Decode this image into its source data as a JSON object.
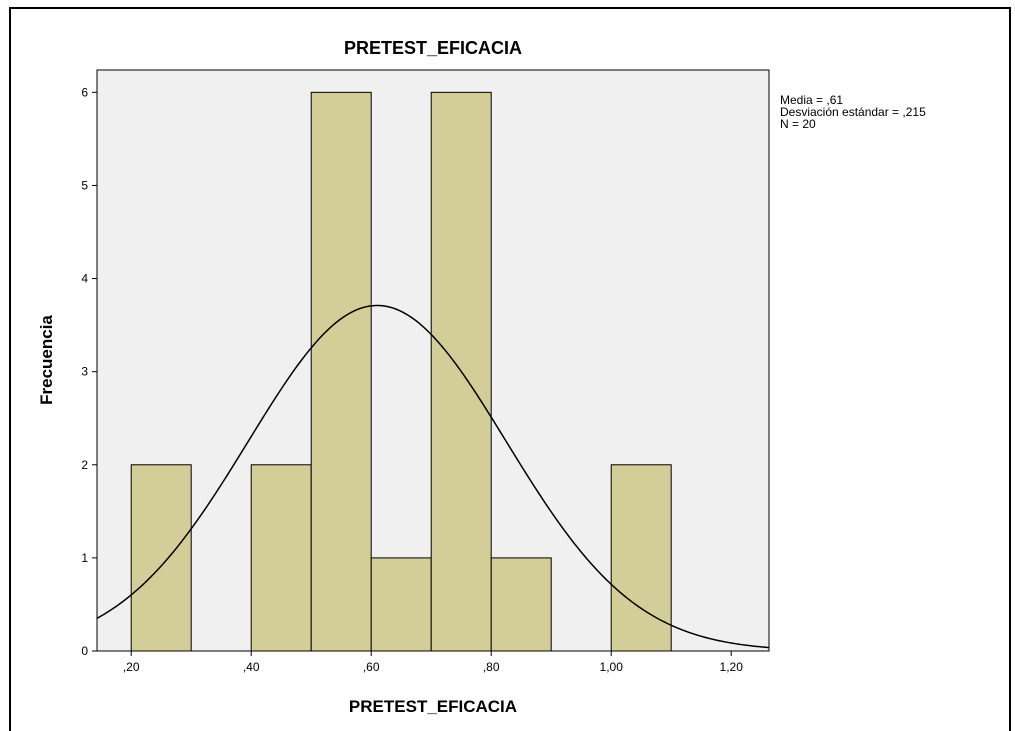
{
  "chart_data": {
    "type": "histogram",
    "title": "PRETEST_EFICACIA",
    "x_label": "PRETEST_EFICACIA",
    "y_label": "Frecuencia",
    "bins": [
      0.2,
      0.3,
      0.4,
      0.5,
      0.6,
      0.7,
      0.8,
      0.9,
      1.0,
      1.1
    ],
    "counts": [
      2,
      0,
      2,
      6,
      1,
      6,
      1,
      0,
      2
    ],
    "color": "#d3ce97",
    "plot_background": "#f0f0f0",
    "xlim": [
      0.143,
      1.263
    ],
    "ylim": [
      0,
      6.24
    ],
    "xticks": [
      {
        "value": 0.2,
        "label": ",20"
      },
      {
        "value": 0.4,
        "label": ",40"
      },
      {
        "value": 0.6,
        "label": ",60"
      },
      {
        "value": 0.8,
        "label": ",80"
      },
      {
        "value": 1.0,
        "label": "1,00"
      },
      {
        "value": 1.2,
        "label": "1,20"
      }
    ],
    "yticks": [
      0,
      1,
      2,
      3,
      4,
      5,
      6
    ],
    "normal_curve": {
      "mean": {
        "value": 0.61,
        "label": "Media = ,61"
      },
      "sd": {
        "value": 0.215,
        "label": "Desviación estándar = ,215"
      },
      "n": {
        "value": 20,
        "label": "N = 20"
      }
    }
  }
}
